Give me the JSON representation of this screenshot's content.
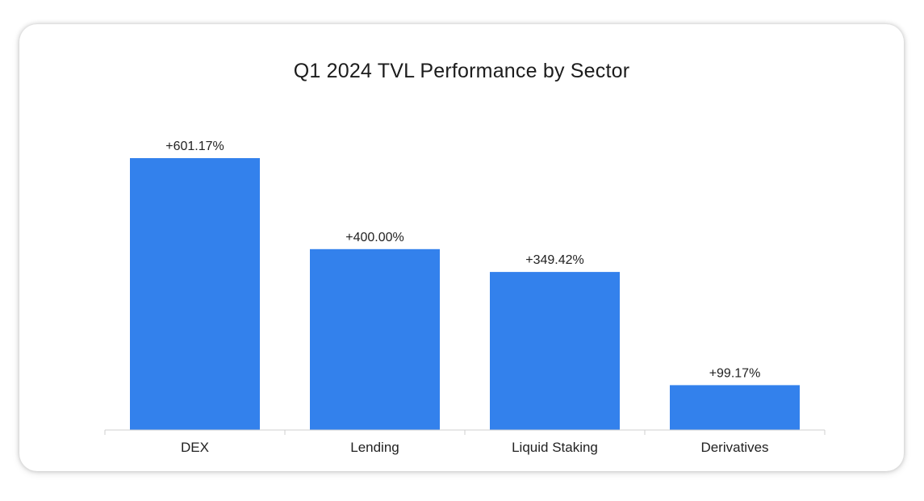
{
  "chart_data": {
    "type": "bar",
    "title": "Q1 2024 TVL Performance by Sector",
    "categories": [
      "DEX",
      "Lending",
      "Liquid Staking",
      "Derivatives"
    ],
    "values": [
      601.17,
      400.0,
      349.42,
      99.17
    ],
    "value_labels": [
      "+601.17%",
      "+400.00%",
      "+349.42%",
      "+99.17%"
    ],
    "xlabel": "",
    "ylabel": "",
    "ylim": [
      0,
      601.17
    ],
    "grid": false,
    "legend": "none",
    "bar_color": "#3381ec"
  }
}
